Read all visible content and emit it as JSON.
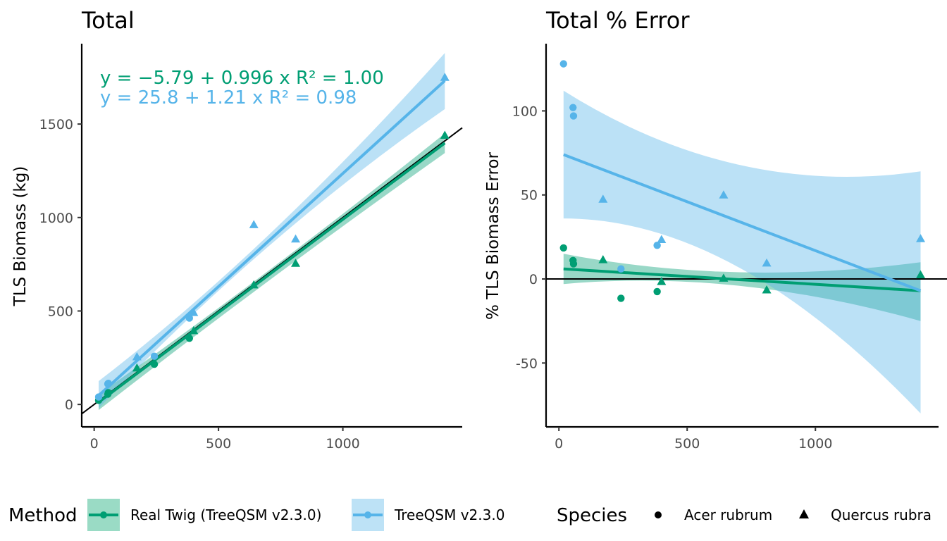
{
  "colors": {
    "real_twig": "#009E73",
    "treeqsm": "#56B4E9",
    "real_twig_band": "#9ADBC5",
    "treeqsm_band": "#BDE2F6",
    "overlap_band": "#7CC8D3",
    "axis": "#000000",
    "tick_text": "#4d4d4d"
  },
  "chart_data": [
    {
      "type": "scatter",
      "title": "Total",
      "xlabel": "",
      "ylabel": "TLS Biomass (kg)",
      "xlim": [
        -50,
        1480
      ],
      "ylim": [
        -120,
        1930
      ],
      "xticks": [
        0,
        500,
        1000
      ],
      "yticks": [
        0,
        500,
        1000,
        1500
      ],
      "reference_line": {
        "label": "1:1 line",
        "intercept": 0,
        "slope": 1
      },
      "equations": [
        {
          "series": "Real Twig (TreeQSM v2.3.0)",
          "text": "y = −5.79 + 0.996 x   R² = 1.00"
        },
        {
          "series": "TreeQSM v2.3.0",
          "text": "y = 25.8 + 1.21 x   R² = 0.98"
        }
      ],
      "series": [
        {
          "name": "Real Twig (TreeQSM v2.3.0)",
          "fit": {
            "intercept": -5.79,
            "slope": 0.996,
            "x_range": [
              18,
              1410
            ]
          },
          "band": [
            {
              "x": 18,
              "lo": -30,
              "hi": 55
            },
            {
              "x": 700,
              "lo": 660,
              "hi": 715
            },
            {
              "x": 1410,
              "lo": 1345,
              "hi": 1450
            }
          ],
          "points": [
            {
              "x": 18,
              "y": 22,
              "species": "Acer rubrum"
            },
            {
              "x": 55,
              "y": 55,
              "species": "Acer rubrum"
            },
            {
              "x": 57,
              "y": 63,
              "species": "Acer rubrum"
            },
            {
              "x": 172,
              "y": 195,
              "species": "Quercus rubra"
            },
            {
              "x": 242,
              "y": 215,
              "species": "Acer rubrum"
            },
            {
              "x": 383,
              "y": 354,
              "species": "Acer rubrum"
            },
            {
              "x": 400,
              "y": 395,
              "species": "Quercus rubra"
            },
            {
              "x": 642,
              "y": 640,
              "species": "Quercus rubra"
            },
            {
              "x": 810,
              "y": 755,
              "species": "Quercus rubra"
            },
            {
              "x": 1410,
              "y": 1440,
              "species": "Quercus rubra"
            }
          ]
        },
        {
          "name": "TreeQSM v2.3.0",
          "fit": {
            "intercept": 25.8,
            "slope": 1.21,
            "x_range": [
              18,
              1410
            ]
          },
          "band": [
            {
              "x": 18,
              "lo": -20,
              "hi": 125
            },
            {
              "x": 700,
              "lo": 845,
              "hi": 905
            },
            {
              "x": 1410,
              "lo": 1580,
              "hi": 1880
            }
          ],
          "points": [
            {
              "x": 18,
              "y": 40,
              "species": "Acer rubrum"
            },
            {
              "x": 55,
              "y": 110,
              "species": "Acer rubrum"
            },
            {
              "x": 57,
              "y": 113,
              "species": "Acer rubrum"
            },
            {
              "x": 172,
              "y": 255,
              "species": "Quercus rubra"
            },
            {
              "x": 242,
              "y": 258,
              "species": "Acer rubrum"
            },
            {
              "x": 383,
              "y": 462,
              "species": "Acer rubrum"
            },
            {
              "x": 400,
              "y": 492,
              "species": "Quercus rubra"
            },
            {
              "x": 642,
              "y": 962,
              "species": "Quercus rubra"
            },
            {
              "x": 810,
              "y": 885,
              "species": "Quercus rubra"
            },
            {
              "x": 1410,
              "y": 1750,
              "species": "Quercus rubra"
            }
          ]
        }
      ]
    },
    {
      "type": "scatter",
      "title": "Total % Error",
      "xlabel": "",
      "ylabel": "% TLS Biomass Error",
      "xlim": [
        -50,
        1480
      ],
      "ylim": [
        -88,
        140
      ],
      "xticks": [
        0,
        500,
        1000
      ],
      "yticks": [
        -50,
        0,
        50,
        100
      ],
      "reference_line": {
        "label": "zero line",
        "y": 0
      },
      "series": [
        {
          "name": "Real Twig (TreeQSM v2.3.0)",
          "fit": {
            "points": [
              {
                "x": 18,
                "y": 6
              },
              {
                "x": 1410,
                "y": -7
              }
            ]
          },
          "band": [
            {
              "x": 18,
              "lo": -3,
              "hi": 15
            },
            {
              "x": 700,
              "lo": -4,
              "hi": 4
            },
            {
              "x": 1410,
              "lo": -25,
              "hi": 10
            }
          ],
          "points": [
            {
              "x": 18,
              "y": 18.5,
              "species": "Acer rubrum"
            },
            {
              "x": 55,
              "y": 11,
              "species": "Acer rubrum"
            },
            {
              "x": 57,
              "y": 9,
              "species": "Acer rubrum"
            },
            {
              "x": 172,
              "y": 11.5,
              "species": "Quercus rubra"
            },
            {
              "x": 242,
              "y": -11.5,
              "species": "Acer rubrum"
            },
            {
              "x": 383,
              "y": -7.5,
              "species": "Acer rubrum"
            },
            {
              "x": 400,
              "y": -1.5,
              "species": "Quercus rubra"
            },
            {
              "x": 642,
              "y": 0.5,
              "species": "Quercus rubra"
            },
            {
              "x": 810,
              "y": -6.5,
              "species": "Quercus rubra"
            },
            {
              "x": 1410,
              "y": 2.5,
              "species": "Quercus rubra"
            }
          ]
        },
        {
          "name": "TreeQSM v2.3.0",
          "fit": {
            "points": [
              {
                "x": 18,
                "y": 74
              },
              {
                "x": 1410,
                "y": -7
              }
            ]
          },
          "band": [
            {
              "x": 18,
              "lo": 36,
              "hi": 112
            },
            {
              "x": 700,
              "lo": 7,
              "hi": 68
            },
            {
              "x": 1410,
              "lo": -80,
              "hi": 64
            }
          ],
          "points": [
            {
              "x": 18,
              "y": 128,
              "species": "Acer rubrum"
            },
            {
              "x": 55,
              "y": 102,
              "species": "Acer rubrum"
            },
            {
              "x": 57,
              "y": 97,
              "species": "Acer rubrum"
            },
            {
              "x": 172,
              "y": 47.5,
              "species": "Quercus rubra"
            },
            {
              "x": 242,
              "y": 6,
              "species": "Acer rubrum"
            },
            {
              "x": 383,
              "y": 20,
              "species": "Acer rubrum"
            },
            {
              "x": 400,
              "y": 23.5,
              "species": "Quercus rubra"
            },
            {
              "x": 642,
              "y": 50,
              "species": "Quercus rubra"
            },
            {
              "x": 810,
              "y": 9.5,
              "species": "Quercus rubra"
            },
            {
              "x": 1410,
              "y": 24,
              "species": "Quercus rubra"
            }
          ]
        }
      ]
    }
  ],
  "legend": {
    "method_title": "Method",
    "method_items": [
      "Real Twig (TreeQSM v2.3.0)",
      "TreeQSM v2.3.0"
    ],
    "species_title": "Species",
    "species_items": [
      "Acer rubrum",
      "Quercus rubra"
    ]
  }
}
